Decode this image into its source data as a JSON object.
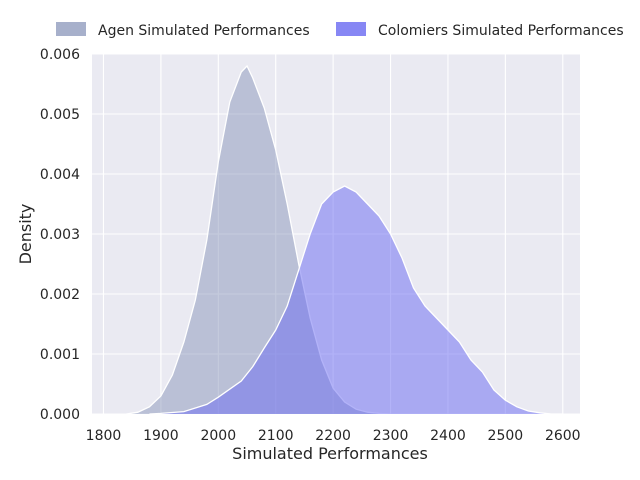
{
  "chart_data": {
    "type": "area",
    "title": "",
    "xlabel": "Simulated Performances",
    "ylabel": "Density",
    "xlim": [
      1780,
      2630
    ],
    "ylim": [
      0,
      0.006
    ],
    "x_ticks": [
      1800,
      1900,
      2000,
      2100,
      2200,
      2300,
      2400,
      2500,
      2600
    ],
    "y_ticks": [
      0.0,
      0.001,
      0.002,
      0.003,
      0.004,
      0.005,
      0.006
    ],
    "x_tick_labels": [
      "1800",
      "1900",
      "2000",
      "2100",
      "2200",
      "2300",
      "2400",
      "2500",
      "2600"
    ],
    "y_tick_labels": [
      "0.000",
      "0.001",
      "0.002",
      "0.003",
      "0.004",
      "0.005",
      "0.006"
    ],
    "grid": true,
    "legend_position": "top",
    "series": [
      {
        "name": "Agen Simulated Performances",
        "color": "#8592B7",
        "x": [
          1840,
          1860,
          1880,
          1900,
          1920,
          1940,
          1960,
          1980,
          2000,
          2020,
          2040,
          2050,
          2060,
          2080,
          2100,
          2120,
          2140,
          2160,
          2180,
          2200,
          2220,
          2240,
          2260,
          2280,
          2300
        ],
        "y": [
          0.0,
          3e-05,
          0.00012,
          0.0003,
          0.00065,
          0.0012,
          0.0019,
          0.0029,
          0.0042,
          0.0052,
          0.0057,
          0.0058,
          0.0056,
          0.0051,
          0.0044,
          0.0035,
          0.0025,
          0.0016,
          0.0009,
          0.00043,
          0.0002,
          8e-05,
          3e-05,
          1e-05,
          0.0
        ]
      },
      {
        "name": "Colomiers Simulated Performances",
        "color": "#6D6DF2",
        "x": [
          1880,
          1900,
          1940,
          1980,
          2000,
          2040,
          2060,
          2080,
          2100,
          2120,
          2140,
          2160,
          2180,
          2200,
          2220,
          2240,
          2260,
          2280,
          2300,
          2320,
          2340,
          2360,
          2380,
          2400,
          2420,
          2440,
          2460,
          2480,
          2500,
          2520,
          2540,
          2560,
          2580,
          2600
        ],
        "y": [
          0.0,
          1e-05,
          4e-05,
          0.00016,
          0.00028,
          0.00055,
          0.00079,
          0.0011,
          0.0014,
          0.0018,
          0.0024,
          0.003,
          0.0035,
          0.0037,
          0.0038,
          0.0037,
          0.0035,
          0.0033,
          0.003,
          0.0026,
          0.0021,
          0.0018,
          0.0016,
          0.0014,
          0.0012,
          0.0009,
          0.0007,
          0.0004,
          0.00023,
          0.00012,
          5e-05,
          2e-05,
          0.0,
          0.0
        ]
      }
    ]
  }
}
